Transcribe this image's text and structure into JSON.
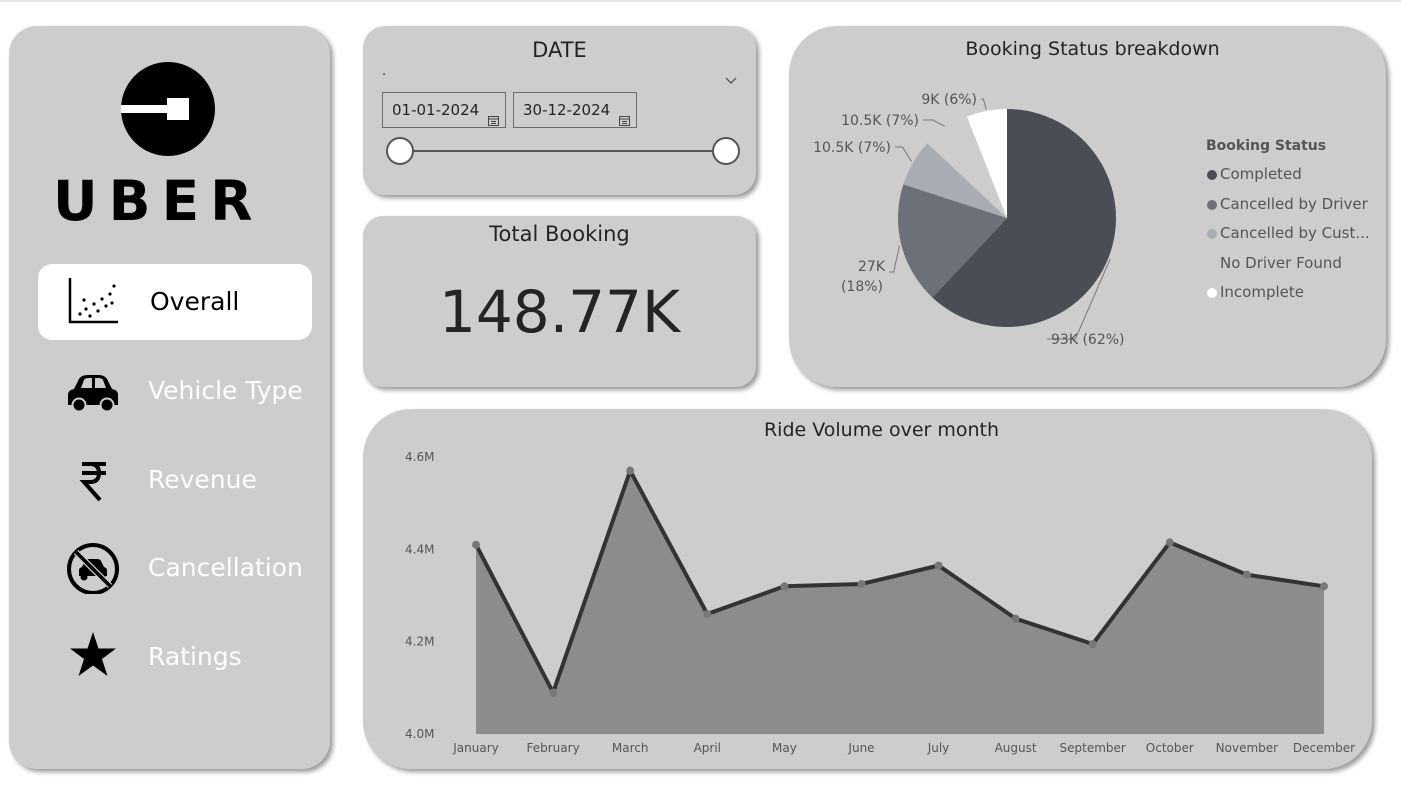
{
  "sidebar": {
    "logo_text": "UBER",
    "items": [
      {
        "label": "Overall",
        "icon": "scatter-chart-icon",
        "active": true
      },
      {
        "label": "Vehicle Type",
        "icon": "car-icon",
        "active": false
      },
      {
        "label": "Revenue",
        "icon": "rupee-icon",
        "active": false
      },
      {
        "label": "Cancellation",
        "icon": "no-car-icon",
        "active": false
      },
      {
        "label": "Ratings",
        "icon": "star-icon",
        "active": false
      }
    ]
  },
  "date_filter": {
    "title": "DATE",
    "dropdown_value": ".",
    "start_date": "01-01-2024",
    "end_date": "30-12-2024"
  },
  "total_booking": {
    "title": "Total Booking",
    "value": "148.77K"
  },
  "booking_status": {
    "title": "Booking Status breakdown",
    "legend_title": "Booking Status",
    "legend": [
      {
        "label": "Completed",
        "color": "#4a4d54"
      },
      {
        "label": "Cancelled by Driver",
        "color": "#6d7078"
      },
      {
        "label": "Cancelled by Cust...",
        "color": "#a9acb3"
      },
      {
        "label": "No Driver Found",
        "color": "#cdcdcd"
      },
      {
        "label": "Incomplete",
        "color": "#ffffff"
      }
    ]
  },
  "ride_volume": {
    "title": "Ride Volume over month"
  },
  "chart_data": [
    {
      "type": "pie",
      "title": "Booking Status breakdown",
      "legend_title": "Booking Status",
      "categories": [
        "Completed",
        "Cancelled by Driver",
        "Cancelled by Customer",
        "No Driver Found",
        "Incomplete"
      ],
      "values": [
        93000,
        27000,
        10500,
        10500,
        9000
      ],
      "percent": [
        62,
        18,
        7,
        7,
        6
      ],
      "data_labels": [
        "93K (62%)",
        "27K (18%)",
        "10.5K (7%)",
        "10.5K (7%)",
        "9K (6%)"
      ],
      "colors": [
        "#4a4d54",
        "#6d7078",
        "#a9acb3",
        "#cdcdcd",
        "#ffffff"
      ],
      "legend_position": "right"
    },
    {
      "type": "area",
      "title": "Ride Volume over month",
      "categories": [
        "January",
        "February",
        "March",
        "April",
        "May",
        "June",
        "July",
        "August",
        "September",
        "October",
        "November",
        "December"
      ],
      "values": [
        4.41,
        4.09,
        4.57,
        4.26,
        4.32,
        4.325,
        4.365,
        4.25,
        4.195,
        4.415,
        4.345,
        4.32
      ],
      "value_unit": "M",
      "ylim": [
        4.0,
        4.6
      ],
      "yticks": [
        "4.0M",
        "4.2M",
        "4.4M",
        "4.6M"
      ],
      "ytick_values": [
        4.0,
        4.2,
        4.4,
        4.6
      ],
      "line_color": "#333333",
      "fill_color": "#8c8c8c",
      "grid": false
    }
  ]
}
